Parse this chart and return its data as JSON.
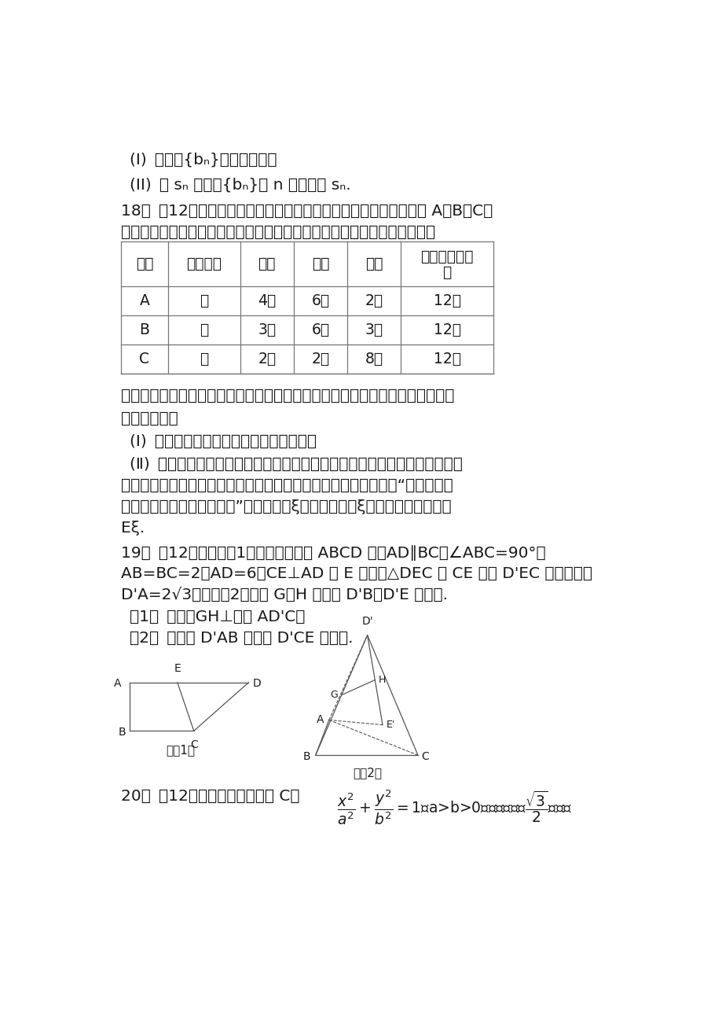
{
  "bg_color": "#ffffff",
  "text_color": "#1a1a1a",
  "page_width": 9.2,
  "page_height": 13.02,
  "line1": "(I) 求数列{bₙ}的通项公式；",
  "line2": "(II) 设 sₙ 是数列{bₙ}前 n 项和，求 sₙ.",
  "q18_intro": "18． （12分）某研究小组在电脑上进行人工降雨模拟试验，准备用 A、B、C三",
  "q18_intro2": "种人工降雨方式分别对甲、乙、丙三地实施人工降雨，其试验数据统计如表",
  "table_header_line1": [
    "方式",
    "实施地点",
    "大雨",
    "中雨",
    "小雨",
    "模拟实验总次"
  ],
  "table_header_line2": [
    "",
    "",
    "",
    "",
    "",
    "数"
  ],
  "table_row1": [
    "A",
    "甲",
    "4次",
    "6次",
    "2次",
    "12次"
  ],
  "table_row2": [
    "B",
    "乙",
    "3次",
    "6次",
    "3次",
    "12次"
  ],
  "table_row3": [
    "C",
    "丙",
    "2次",
    "2次",
    "8次",
    "12次"
  ],
  "q18_text1": "假定对甲、乙、丙三地实施的人工降雨彼此互不影响，请你根据人工降雨模拟试",
  "q18_text2": "验的统计数据",
  "q18_i": "(Ⅰ) 求甲、乙、丙三地都恰为中雨的概率；",
  "q18_ii1": "(Ⅱ) 考虑到旱情和水土流失，如果甲地恰需中雨即达到理想状态，乙地必须是",
  "q18_ii2": "大雨才达到理想状态，丙地只能是小雨或中雨即达到理想状态，记“甲、乙、丙",
  "q18_ii3": "三地中达到理想状态的个数”为随机变量ξ，求随机变量ξ的分布列和数学期望",
  "q18_ii4": "Eξ.",
  "q19_intro": "19． （12分）如图《1》：在直角梯形 ABCD 中，AD∥BC，∠ABC=90°，",
  "q19_intro2": "AB=BC=2，AD=6，CE⊥AD 于 E 点，把△DEC 沿 CE 折到 D'EC 的位置，使",
  "q19_intro3": "D'A=2√3，如图《2》：若 G，H 分别为 D'B，D'E 的中点.",
  "q19_i": "（1） 求证：GH⊥平面 AD'C；",
  "q19_ii": "（2） 求平面 D'AB 与平面 D'CE 的夹角.",
  "q20_line": "20． （12分）如图，已知橢圆 C："
}
